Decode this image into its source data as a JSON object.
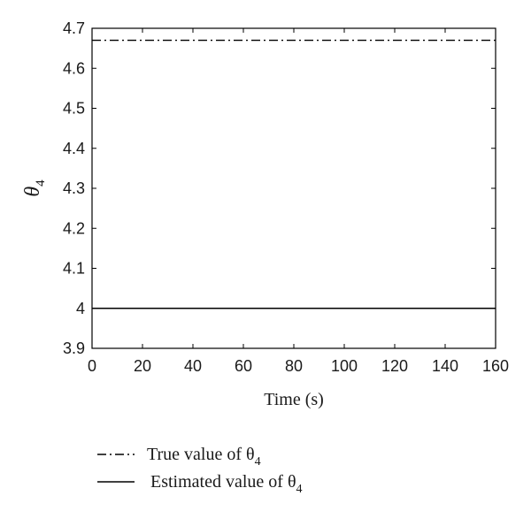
{
  "chart_data": {
    "type": "line",
    "xlabel": "Time (s)",
    "ylabel": {
      "symbol": "θ",
      "subscript": "4"
    },
    "xlim": [
      0,
      160
    ],
    "ylim": [
      3.9,
      4.7
    ],
    "xticks": [
      "0",
      "20",
      "40",
      "60",
      "80",
      "100",
      "120",
      "140",
      "160"
    ],
    "yticks": [
      "3.9",
      "4",
      "4.1",
      "4.2",
      "4.3",
      "4.4",
      "4.5",
      "4.6",
      "4.7"
    ],
    "grid": false,
    "legend_position": "bottom",
    "series": [
      {
        "name": "True value of θ4",
        "label_text": "True value of θ",
        "label_sub": "4",
        "line_style": "dash-dot",
        "x": [
          0,
          160
        ],
        "y": [
          4.67,
          4.67
        ]
      },
      {
        "name": "Estimated value of θ4",
        "label_text": "Estimated value of θ",
        "label_sub": "4",
        "line_style": "solid",
        "x": [
          0,
          160
        ],
        "y": [
          4.0,
          4.0
        ]
      }
    ]
  }
}
